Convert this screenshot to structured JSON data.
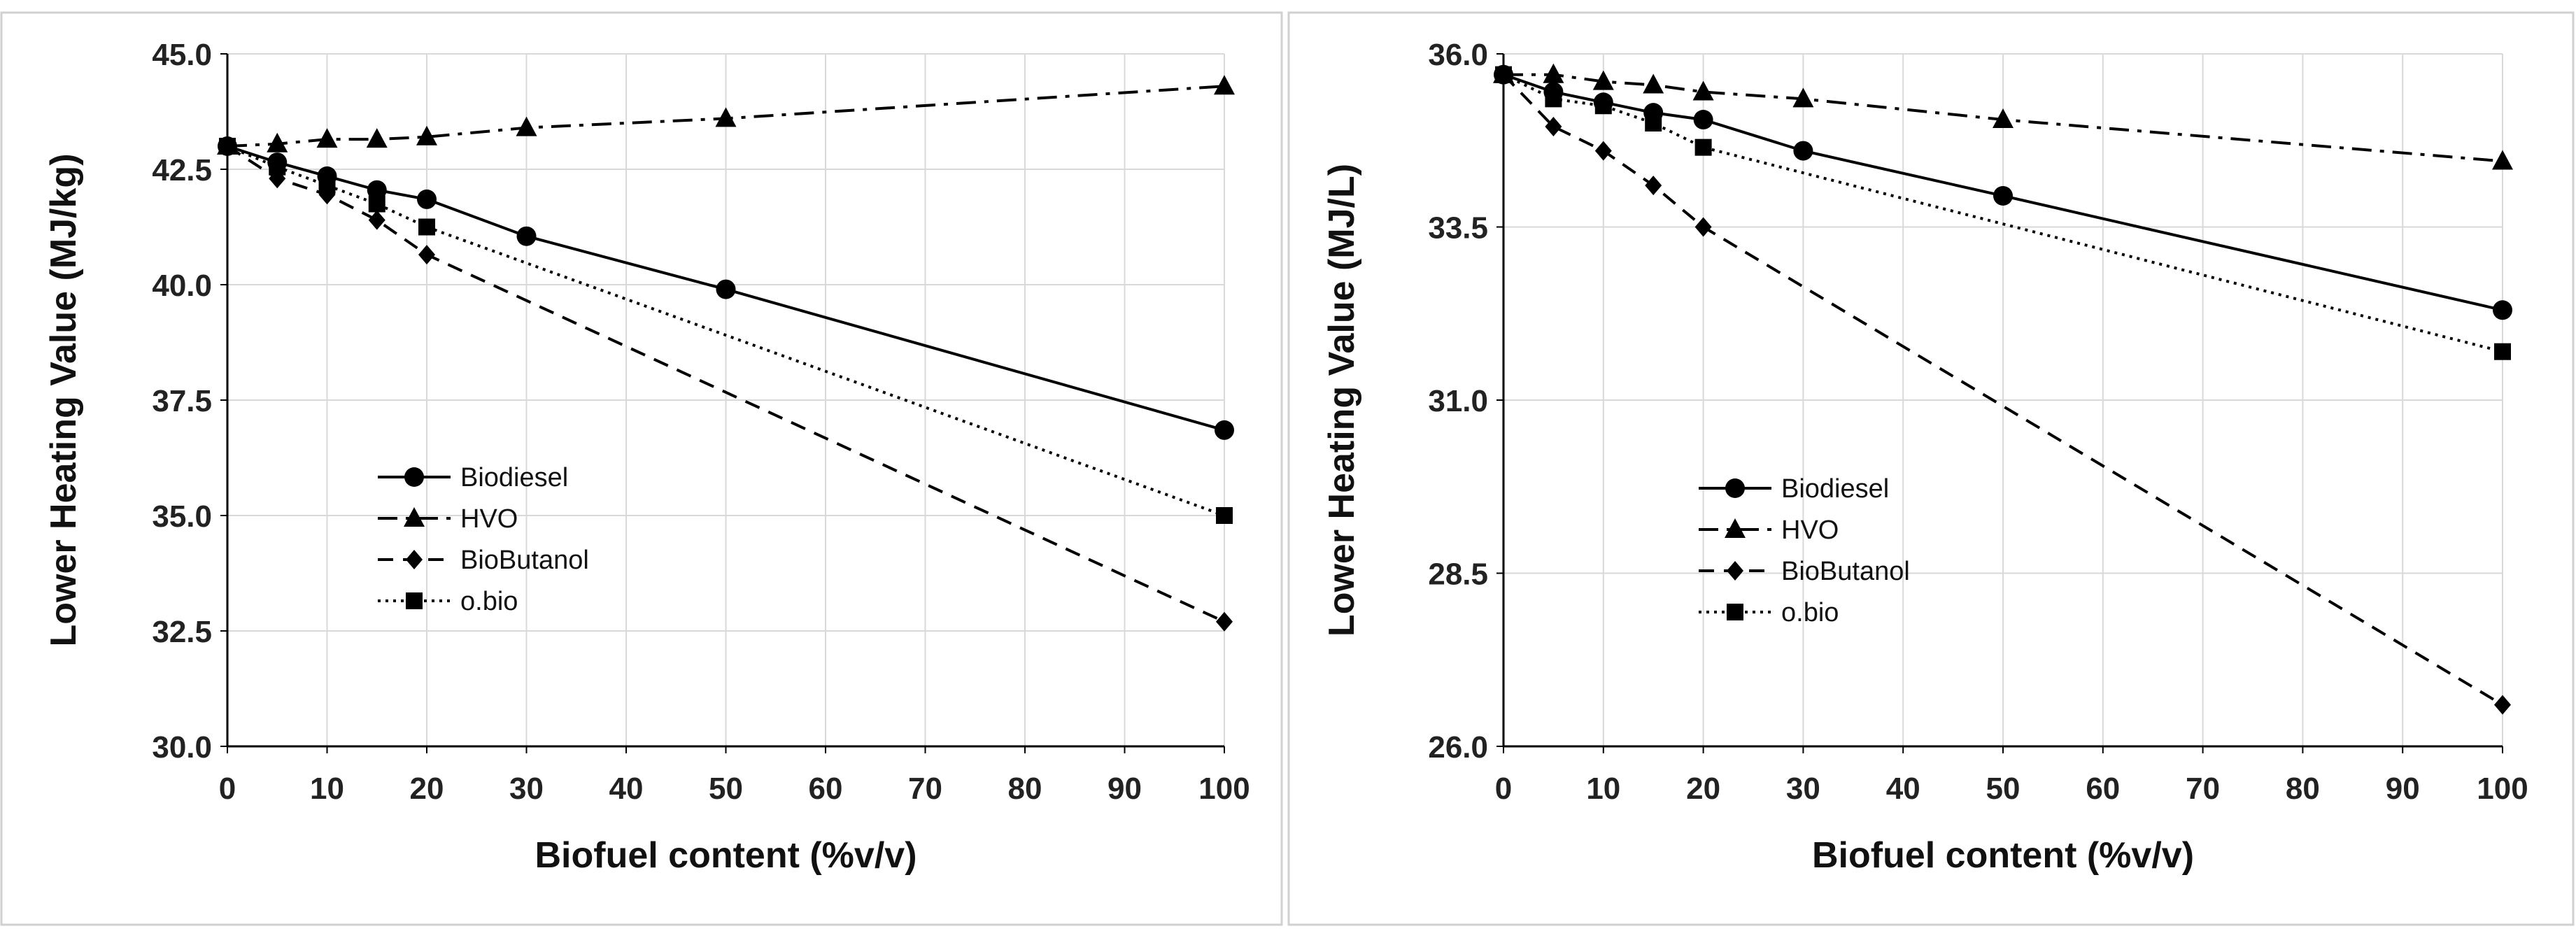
{
  "figure": {
    "panel_labels": [
      "",
      ""
    ]
  },
  "chart_data": [
    {
      "type": "line",
      "xlabel": "Biofuel content (%v/v)",
      "ylabel": "Lower Heating Value (MJ/kg)",
      "xlim": [
        0,
        100
      ],
      "ylim": [
        30,
        45
      ],
      "xticks": [
        0,
        10,
        20,
        30,
        40,
        50,
        60,
        70,
        80,
        90,
        100
      ],
      "yticks": [
        30.0,
        32.5,
        35.0,
        37.5,
        40.0,
        42.5,
        45.0
      ],
      "ytick_labels": [
        "30.0",
        "32.5",
        "35.0",
        "37.5",
        "40.0",
        "42.5",
        "45.0"
      ],
      "grid": true,
      "legend_position": "center-left",
      "series": [
        {
          "name": "Biodiesel",
          "marker": "circle",
          "dash": "solid",
          "x": [
            0,
            5,
            10,
            15,
            20,
            30,
            50,
            100
          ],
          "y": [
            43.0,
            42.65,
            42.35,
            42.05,
            41.85,
            41.05,
            39.9,
            36.85
          ]
        },
        {
          "name": "HVO",
          "marker": "triangle",
          "dash": "dashdot",
          "x": [
            0,
            5,
            10,
            15,
            20,
            30,
            50,
            100
          ],
          "y": [
            43.0,
            43.05,
            43.15,
            43.15,
            43.2,
            43.4,
            43.6,
            44.3
          ]
        },
        {
          "name": "BioButanol",
          "marker": "diamond",
          "dash": "dashed",
          "x": [
            0,
            5,
            10,
            15,
            20,
            100
          ],
          "y": [
            43.0,
            42.3,
            41.95,
            41.4,
            40.65,
            32.7
          ]
        },
        {
          "name": "o.bio",
          "marker": "square",
          "dash": "dotted",
          "x": [
            0,
            5,
            10,
            15,
            20,
            100
          ],
          "y": [
            43.0,
            42.55,
            42.15,
            41.75,
            41.25,
            35.0
          ]
        }
      ]
    },
    {
      "type": "line",
      "xlabel": "Biofuel content (%v/v)",
      "ylabel": "Lower Heating Value  (MJ/L)",
      "xlim": [
        0,
        100
      ],
      "ylim": [
        26,
        36
      ],
      "xticks": [
        0,
        10,
        20,
        30,
        40,
        50,
        60,
        70,
        80,
        90,
        100
      ],
      "yticks": [
        26.0,
        28.5,
        31.0,
        33.5,
        36.0
      ],
      "ytick_labels": [
        "26.0",
        "28.5",
        "31.0",
        "33.5",
        "36.0"
      ],
      "grid": true,
      "legend_position": "center-left",
      "series": [
        {
          "name": "Biodiesel",
          "marker": "circle",
          "dash": "solid",
          "x": [
            0,
            5,
            10,
            15,
            20,
            30,
            50,
            100
          ],
          "y": [
            35.7,
            35.45,
            35.3,
            35.15,
            35.05,
            34.6,
            33.95,
            32.3
          ]
        },
        {
          "name": "HVO",
          "marker": "triangle",
          "dash": "dashdot",
          "x": [
            0,
            5,
            10,
            15,
            20,
            30,
            50,
            100
          ],
          "y": [
            35.7,
            35.7,
            35.6,
            35.55,
            35.45,
            35.35,
            35.05,
            34.45
          ]
        },
        {
          "name": "BioButanol",
          "marker": "diamond",
          "dash": "dashed",
          "x": [
            0,
            5,
            10,
            15,
            20,
            100
          ],
          "y": [
            35.7,
            34.95,
            34.6,
            34.1,
            33.5,
            26.6
          ]
        },
        {
          "name": "o.bio",
          "marker": "square",
          "dash": "dotted",
          "x": [
            0,
            5,
            10,
            15,
            20,
            100
          ],
          "y": [
            35.7,
            35.35,
            35.25,
            35.0,
            34.65,
            31.7
          ]
        }
      ]
    }
  ]
}
